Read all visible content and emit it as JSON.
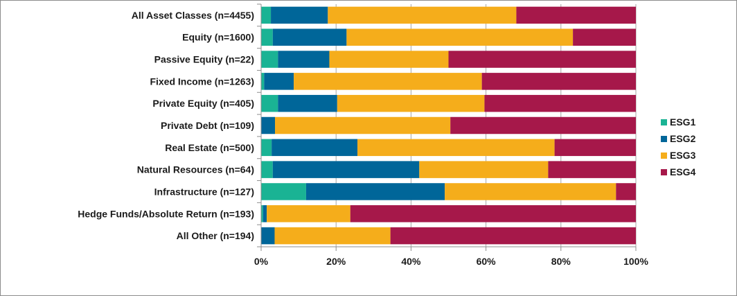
{
  "chart_data": {
    "type": "bar",
    "orientation": "horizontal",
    "stacked": true,
    "percent": true,
    "categories": [
      "All Asset Classes (n=4455)",
      "Equity (n=1600)",
      "Passive Equity (n=22)",
      "Fixed Income (n=1263)",
      "Private Equity (n=405)",
      "Private Debt (n=109)",
      "Real Estate (n=500)",
      "Natural Resources (n=64)",
      "Infrastructure (n=127)",
      "Hedge Funds/Absolute Return (n=193)",
      "All Other (n=194)"
    ],
    "series": [
      {
        "name": "ESG1",
        "color": "#1ab394",
        "values": [
          2.6,
          3.1,
          4.5,
          0.8,
          4.5,
          0.0,
          2.8,
          3.1,
          12.0,
          0.5,
          0.0
        ]
      },
      {
        "name": "ESG2",
        "color": "#006699",
        "values": [
          15.2,
          19.7,
          13.7,
          7.9,
          15.8,
          3.7,
          22.9,
          39.1,
          37.0,
          1.0,
          3.6
        ]
      },
      {
        "name": "ESG3",
        "color": "#f5ad1b",
        "values": [
          50.3,
          60.4,
          31.8,
          50.2,
          39.3,
          46.8,
          52.6,
          34.4,
          45.7,
          22.3,
          30.9
        ]
      },
      {
        "name": "ESG4",
        "color": "#a6184a",
        "values": [
          31.9,
          16.8,
          50.0,
          41.1,
          40.4,
          49.5,
          21.7,
          23.4,
          5.3,
          76.2,
          65.5
        ]
      }
    ],
    "xticks": [
      "0%",
      "20%",
      "40%",
      "60%",
      "80%",
      "100%"
    ],
    "xlim": [
      0,
      100
    ],
    "grid": "vertical",
    "legend_position": "right",
    "title": "",
    "xlabel": "",
    "ylabel": ""
  }
}
